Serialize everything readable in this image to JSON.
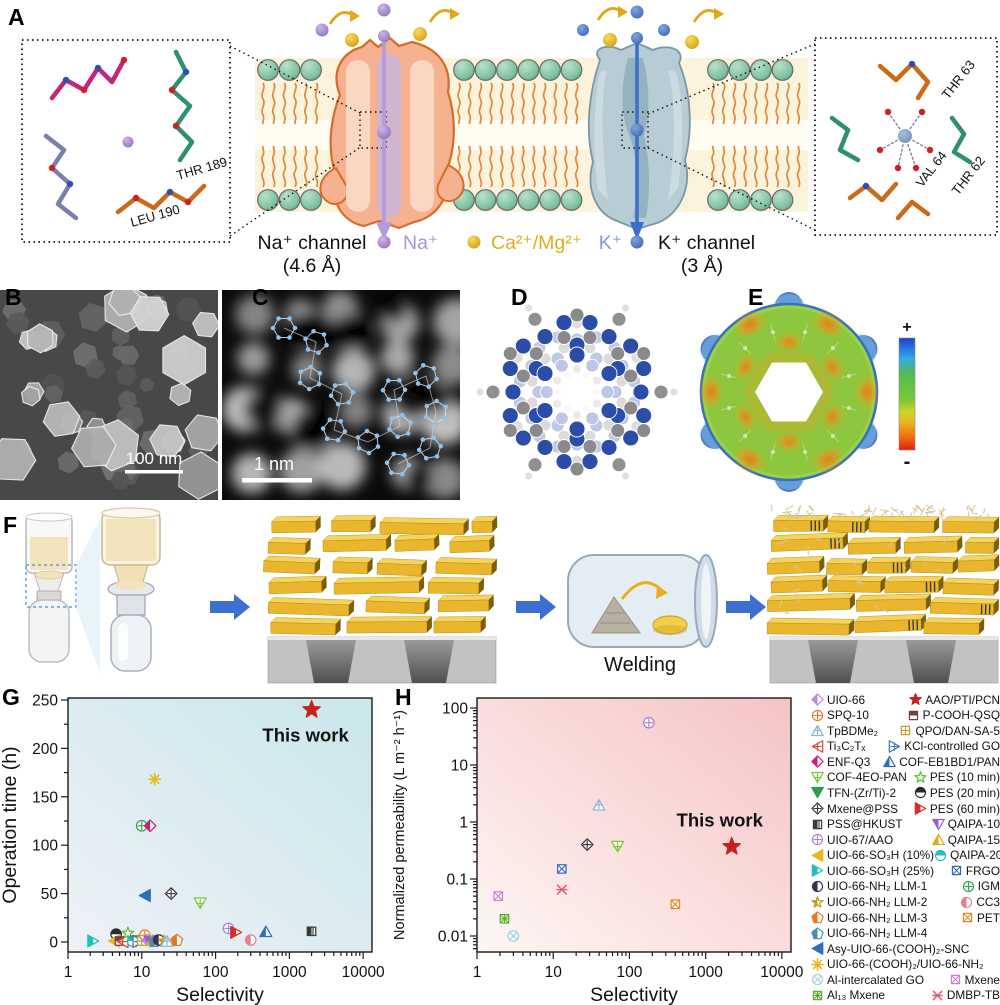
{
  "figure": {
    "panel_labels": {
      "a": "A",
      "b": "B",
      "c": "C",
      "d": "D",
      "e": "E",
      "f": "F",
      "g": "G",
      "h": "H"
    }
  },
  "panel_a": {
    "left_inset": {
      "residue_labels": [
        "THR 189",
        "LEU 190"
      ]
    },
    "right_inset": {
      "residue_labels": [
        "THR 63",
        "VAL 64",
        "THR 62"
      ]
    },
    "na_channel_line1": "Na⁺ channel",
    "na_channel_line2": "(4.6 Å)",
    "k_channel_line1": "K⁺ channel",
    "k_channel_line2": "(3 Å)",
    "ion_legend": [
      {
        "label": "Na⁺",
        "color": "#ab93d4"
      },
      {
        "label": "Ca²⁺/Mg²⁺",
        "color": "#dfae1f"
      },
      {
        "label": "K⁺",
        "color": "#7f9bd8"
      }
    ]
  },
  "panel_b": {
    "scale_bar_label": "100 nm"
  },
  "panel_c": {
    "scale_bar_label": "1 nm"
  },
  "panel_e": {
    "colorbar_top": "+",
    "colorbar_bottom": "-"
  },
  "panel_f": {
    "step_label": "Welding"
  },
  "chart_data": [
    {
      "id": "G",
      "type": "scatter",
      "xlabel": "Selectivity",
      "ylabel": "Operation time (h)",
      "x_scale": "log",
      "xlim": [
        1,
        10000
      ],
      "x_ticks": [
        "1",
        "10",
        "100",
        "1000",
        "10000"
      ],
      "y_scale": "linear",
      "ylim": [
        0,
        250
      ],
      "y_ticks": [
        0,
        50,
        100,
        150,
        200,
        250
      ],
      "annotation": "This work",
      "points": [
        {
          "name": "UIO-66-(COOH)₂/UIO-66-NH₂",
          "x": 15,
          "y": 168
        },
        {
          "name": "IGM",
          "x": 10,
          "y": 120
        },
        {
          "name": "ENF-Q3",
          "x": 13,
          "y": 120
        },
        {
          "name": "Asy-UIO-66-(COOH)₂-SNC",
          "x": 11,
          "y": 48
        },
        {
          "name": "Mxene@PSS",
          "x": 25,
          "y": 50
        },
        {
          "name": "COF-4EO-PAN",
          "x": 62,
          "y": 40
        },
        {
          "name": "UIO-67/AAO",
          "x": 150,
          "y": 14
        },
        {
          "name": "PES (60 min)",
          "x": 190,
          "y": 10
        },
        {
          "name": "COF-EB1BD1/PAN",
          "x": 480,
          "y": 11
        },
        {
          "name": "PSS@HKUST",
          "x": 2000,
          "y": 11
        },
        {
          "name": "CC3",
          "x": 300,
          "y": 2
        },
        {
          "name": "UIO-66-SO₃H (25%)",
          "x": 2.2,
          "y": 1
        },
        {
          "name": "PES (20 min)",
          "x": 4.5,
          "y": 8
        },
        {
          "name": "UIO-66-SO₃H (10%)",
          "x": 4.2,
          "y": 1
        },
        {
          "name": "P-COOH-QSQ",
          "x": 5,
          "y": 1
        },
        {
          "name": "Ti₃C₂Tₓ",
          "x": 5.5,
          "y": 0.5
        },
        {
          "name": "PES (10 min)",
          "x": 6.5,
          "y": 9
        },
        {
          "name": "QAIPA-20",
          "x": 7.5,
          "y": 1
        },
        {
          "name": "TFN-(Zr/Ti)-2",
          "x": 8.5,
          "y": 1
        },
        {
          "name": "KCl-controlled GO",
          "x": 9,
          "y": 0.5
        },
        {
          "name": "QPO/DAN-SA-5",
          "x": 10,
          "y": 1
        },
        {
          "name": "SPQ-10",
          "x": 11,
          "y": 7
        },
        {
          "name": "UIO-66",
          "x": 12,
          "y": 2
        },
        {
          "name": "QAIPA-10",
          "x": 13,
          "y": 0.5
        },
        {
          "name": "QAIPA-15",
          "x": 14,
          "y": 2
        },
        {
          "name": "UIO-66-NH₂ LLM-4",
          "x": 15,
          "y": 1
        },
        {
          "name": "UIO-66-NH₂ LLM-1",
          "x": 17,
          "y": 2
        },
        {
          "name": "UIO-66-NH₂ LLM-2",
          "x": 20,
          "y": 1
        },
        {
          "name": "TpBDMe₂",
          "x": 22,
          "y": 1
        },
        {
          "name": "UIO-66-NH₂ LLM-3",
          "x": 30,
          "y": 2
        },
        {
          "name": "AAO/PTI/PCN",
          "x": 2000,
          "y": 240,
          "highlight": true
        }
      ]
    },
    {
      "id": "H",
      "type": "scatter",
      "xlabel": "Selectivity",
      "ylabel": "Normalized permeability (L m⁻² h⁻¹)",
      "x_scale": "log",
      "xlim": [
        1,
        10000
      ],
      "x_ticks": [
        "1",
        "10",
        "100",
        "1000",
        "10000"
      ],
      "y_scale": "log",
      "ylim": [
        0.01,
        100
      ],
      "y_ticks": [
        "100",
        "10",
        "1",
        "0.1",
        "0.01"
      ],
      "annotation": "This work",
      "points": [
        {
          "name": "UIO-67/AAO",
          "x": 180,
          "y": 55
        },
        {
          "name": "TpBDMe₂",
          "x": 40,
          "y": 2
        },
        {
          "name": "Mxene@PSS",
          "x": 28,
          "y": 0.4
        },
        {
          "name": "COF-4EO-PAN",
          "x": 70,
          "y": 0.37
        },
        {
          "name": "FRGO",
          "x": 13,
          "y": 0.15
        },
        {
          "name": "DMBP-TB",
          "x": 13,
          "y": 0.065
        },
        {
          "name": "Mxene",
          "x": 1.9,
          "y": 0.05
        },
        {
          "name": "Al₁₃ Mxene",
          "x": 2.3,
          "y": 0.02
        },
        {
          "name": "Al-intercalated GO",
          "x": 3,
          "y": 0.01
        },
        {
          "name": "PET",
          "x": 400,
          "y": 0.036
        },
        {
          "name": "AAO/PTI/PCN",
          "x": 2200,
          "y": 0.37,
          "highlight": true
        }
      ]
    }
  ],
  "legend": {
    "rows": [
      {
        "left": "UIO-66",
        "right": "AAO/PTI/PCN"
      },
      {
        "left": "SPQ-10",
        "right": "P-COOH-QSQ"
      },
      {
        "left": "TpBDMe₂",
        "right": "QPO/DAN-SA-5"
      },
      {
        "left": "Ti₃C₂Tₓ",
        "right": "KCl-controlled GO"
      },
      {
        "left": "ENF-Q3",
        "right": "COF-EB1BD1/PAN"
      },
      {
        "left": "COF-4EO-PAN",
        "right": "PES (10 min)"
      },
      {
        "left": "TFN-(Zr/Ti)-2",
        "right": "PES (20 min)"
      },
      {
        "left": "Mxene@PSS",
        "right": "PES (60 min)"
      },
      {
        "left": "PSS@HKUST",
        "right": "QAIPA-10"
      },
      {
        "left": "UIO-67/AAO",
        "right": "QAIPA-15"
      },
      {
        "left": "UIO-66-SO₃H (10%)",
        "right": "QAIPA-20"
      },
      {
        "left": "UIO-66-SO₃H (25%)",
        "right": "FRGO"
      },
      {
        "left": "UIO-66-NH₂ LLM-1",
        "right": "IGM"
      },
      {
        "left": "UIO-66-NH₂ LLM-2",
        "right": "CC3"
      },
      {
        "left": "UIO-66-NH₂ LLM-3",
        "right": "PET"
      },
      {
        "left": "UIO-66-NH₂ LLM-4",
        "right": null
      },
      {
        "left": "Asy-UIO-66-(COOH)₂-SNC",
        "right": null
      },
      {
        "left": "UIO-66-(COOH)₂/UIO-66-NH₂",
        "right": null
      },
      {
        "left": "Al-intercalated GO",
        "right": "Mxene"
      },
      {
        "left": "Al₁₃ Mxene",
        "right": "DMBP-TB"
      }
    ],
    "markers": {
      "UIO-66": {
        "shape": "diamond-half",
        "color": "#b78be0"
      },
      "SPQ-10": {
        "shape": "circle-plus",
        "color": "#e87722"
      },
      "TpBDMe₂": {
        "shape": "tri-up-plus",
        "color": "#8ab4d8"
      },
      "Ti₃C₂Tₓ": {
        "shape": "tri-left-plus",
        "color": "#d94a3a"
      },
      "ENF-Q3": {
        "shape": "diamond-half",
        "color": "#d4187c"
      },
      "COF-4EO-PAN": {
        "shape": "tri-down-plus",
        "color": "#7dc832"
      },
      "TFN-(Zr/Ti)-2": {
        "shape": "tri-down",
        "color": "#2e9e4f"
      },
      "Mxene@PSS": {
        "shape": "diamond-plus",
        "color": "#3a3a3a"
      },
      "PSS@HKUST": {
        "shape": "square-stripe",
        "color": "#3a3a3a"
      },
      "UIO-67/AAO": {
        "shape": "circle-plus",
        "color": "#a87fd4"
      },
      "UIO-66-SO₃H (10%)": {
        "shape": "tri-left",
        "color": "#e8b820"
      },
      "UIO-66-SO₃H (25%)": {
        "shape": "tri-right-half",
        "color": "#20c0c0"
      },
      "UIO-66-NH₂ LLM-1": {
        "shape": "circle-half",
        "color": "#3a3050"
      },
      "UIO-66-NH₂ LLM-2": {
        "shape": "star-half",
        "color": "#b8a020"
      },
      "UIO-66-NH₂ LLM-3": {
        "shape": "pentagon-half",
        "color": "#e87722"
      },
      "UIO-66-NH₂ LLM-4": {
        "shape": "pentagon-half",
        "color": "#4a8fa8"
      },
      "Asy-UIO-66-(COOH)₂-SNC": {
        "shape": "tri-left",
        "color": "#2e6fbd"
      },
      "UIO-66-(COOH)₂/UIO-66-NH₂": {
        "shape": "asterisk",
        "color": "#e8b820"
      },
      "Al-intercalated GO": {
        "shape": "circle-x",
        "color": "#9ad0e8"
      },
      "Al₁₃ Mxene": {
        "shape": "square-xx",
        "color": "#5ab030"
      },
      "AAO/PTI/PCN": {
        "shape": "star",
        "color": "#c81f1f"
      },
      "P-COOH-QSQ": {
        "shape": "square-half",
        "color": "#7a4040"
      },
      "QPO/DAN-SA-5": {
        "shape": "square-grid",
        "color": "#c0a030"
      },
      "KCl-controlled GO": {
        "shape": "tri-right-plus",
        "color": "#3a7abd"
      },
      "COF-EB1BD1/PAN": {
        "shape": "tri-up-half",
        "color": "#2e6fbd"
      },
      "PES (10 min)": {
        "shape": "star-open",
        "color": "#55c030"
      },
      "PES (20 min)": {
        "shape": "circle-half-top",
        "color": "#2a2a2a"
      },
      "PES (60 min)": {
        "shape": "tri-right-half",
        "color": "#d42e2e"
      },
      "QAIPA-10": {
        "shape": "tri-down-half",
        "color": "#9a5fd4"
      },
      "QAIPA-15": {
        "shape": "tri-up-half",
        "color": "#e0a818"
      },
      "QAIPA-20": {
        "shape": "circle-half-top",
        "color": "#28b8c8"
      },
      "FRGO": {
        "shape": "square-x",
        "color": "#3a6abd"
      },
      "IGM": {
        "shape": "circle-plus",
        "color": "#2e9e4f"
      },
      "CC3": {
        "shape": "circle-half",
        "color": "#e87f8f"
      },
      "PET": {
        "shape": "square-x",
        "color": "#e08a28"
      },
      "Mxene": {
        "shape": "square-x",
        "color": "#cf7fd4"
      },
      "DMBP-TB": {
        "shape": "x",
        "color": "#e06070"
      }
    }
  }
}
